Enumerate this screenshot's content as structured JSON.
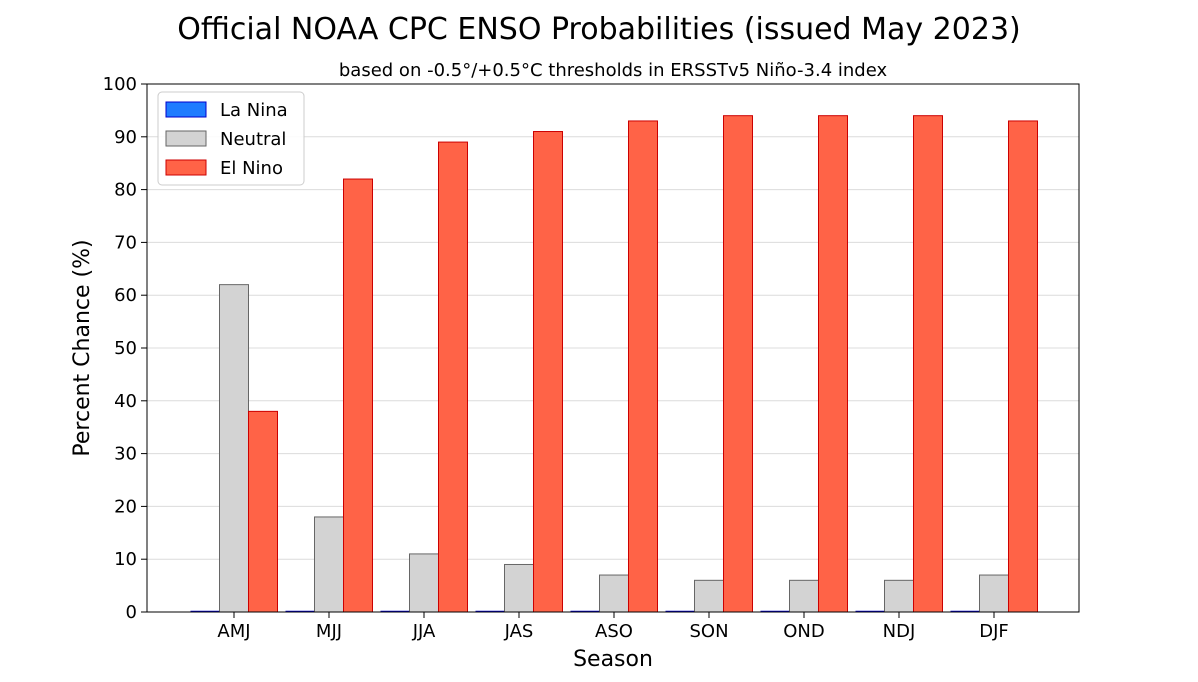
{
  "chart_data": {
    "type": "bar",
    "title": "Official NOAA CPC ENSO Probabilities (issued May 2023)",
    "subtitle": "based on -0.5°/+0.5°C thresholds in ERSSTv5 Niño-3.4 index",
    "xlabel": "Season",
    "ylabel": "Percent Chance (%)",
    "ylim": [
      0,
      100
    ],
    "yticks": [
      0,
      10,
      20,
      30,
      40,
      50,
      60,
      70,
      80,
      90,
      100
    ],
    "grid": true,
    "legend_position": "top-left",
    "categories": [
      "AMJ",
      "MJJ",
      "JJA",
      "JAS",
      "ASO",
      "SON",
      "OND",
      "NDJ",
      "DJF"
    ],
    "series": [
      {
        "name": "La Nina",
        "color": "#1f7cff",
        "edge": "#0000cc",
        "values": [
          0,
          0,
          0,
          0,
          0,
          0,
          0,
          0,
          0
        ]
      },
      {
        "name": "Neutral",
        "color": "#d3d3d3",
        "edge": "#666666",
        "values": [
          62,
          18,
          11,
          9,
          7,
          6,
          6,
          6,
          7
        ]
      },
      {
        "name": "El Nino",
        "color": "#ff6347",
        "edge": "#cc0000",
        "values": [
          38,
          82,
          89,
          91,
          93,
          94,
          94,
          94,
          93
        ]
      }
    ]
  }
}
